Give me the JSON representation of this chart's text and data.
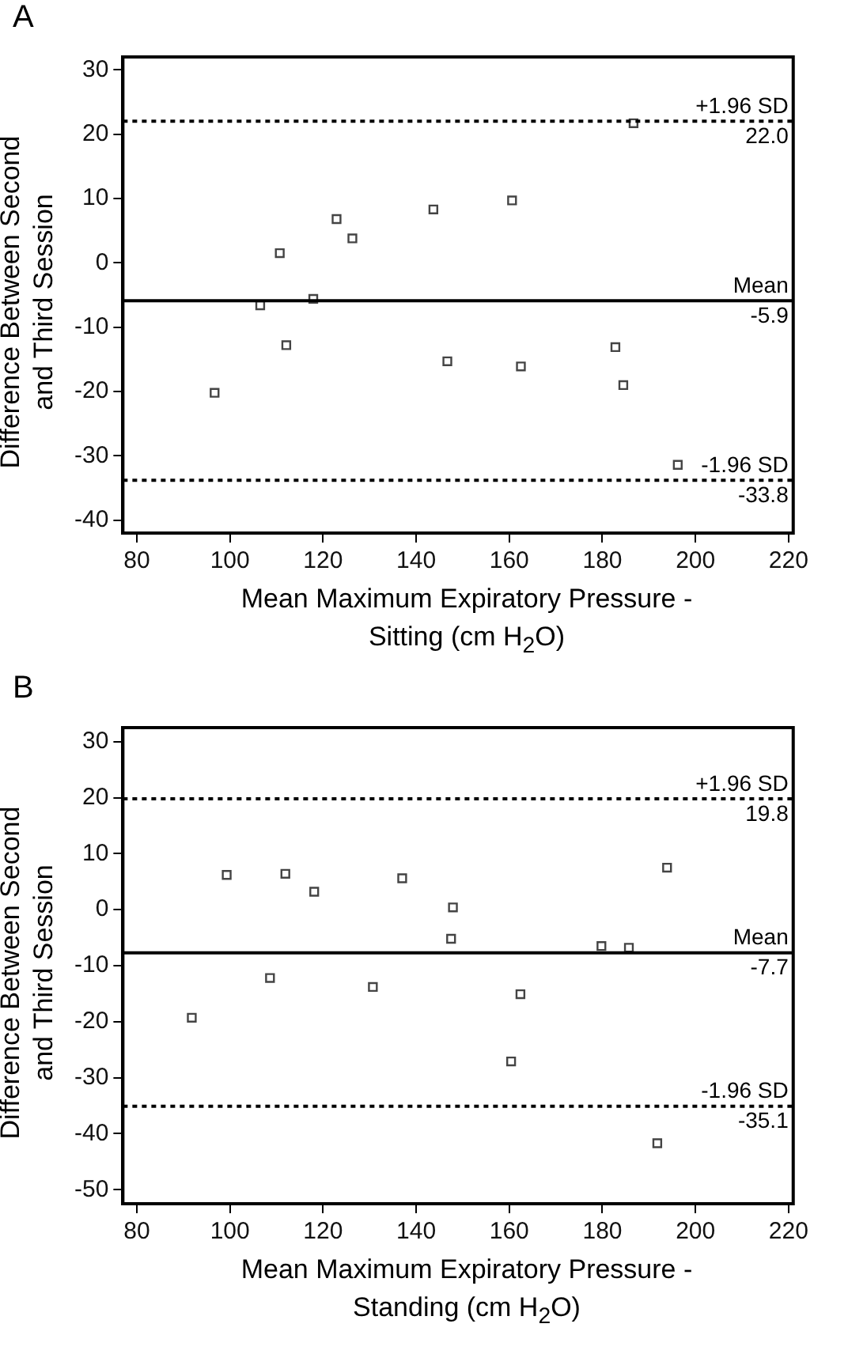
{
  "chart_data": [
    {
      "type": "scatter",
      "title": "A",
      "xlabel": "Mean Maximum Expiratory Pressure - Sitting (cm H$_{2}$O)",
      "ylabel": "Difference Between Second and Third Session",
      "x": [
        96.7,
        106.5,
        110.7,
        112.1,
        117.9,
        122.9,
        126.3,
        143.7,
        146.7,
        160.6,
        162.5,
        182.8,
        184.5,
        186.7,
        196.2
      ],
      "values": [
        -20.2,
        -6.6,
        1.5,
        -12.8,
        -5.6,
        6.8,
        3.8,
        8.3,
        -15.3,
        9.7,
        -16.1,
        -13.1,
        -19.0,
        21.7,
        -31.4
      ],
      "color": "#444444",
      "marker": "square",
      "grid": false,
      "xlim": [
        77,
        221
      ],
      "xticks": [
        80,
        100,
        120,
        140,
        160,
        180,
        200,
        220
      ],
      "ylim": [
        -42,
        32
      ],
      "yticks": [
        -40,
        -30,
        -20,
        -10,
        0,
        10,
        20,
        30
      ],
      "ref_lines": [
        {
          "axis": "y",
          "value": 22.0,
          "label": "+1.96 SD\n22.0",
          "line_style": "dotted",
          "color": "#000000"
        },
        {
          "axis": "y",
          "value": -5.9,
          "label": "Mean\n-5.9",
          "line_style": "solid",
          "color": "#000000"
        },
        {
          "axis": "y",
          "value": -33.8,
          "label": "-1.96 SD\n-33.8",
          "line_style": "dotted",
          "color": "#000000"
        }
      ]
    },
    {
      "type": "scatter",
      "title": "B",
      "xlabel": "Mean Maximum Expiratory Pressure - Standing (cm H$_{2}$O)",
      "ylabel": "Difference Between Second and Third Session",
      "x": [
        91.8,
        99.3,
        108.6,
        111.9,
        118.1,
        130.7,
        137.0,
        147.5,
        147.9,
        160.4,
        162.4,
        179.8,
        185.7,
        191.8,
        193.9
      ],
      "values": [
        -19.3,
        6.2,
        -12.2,
        6.4,
        3.2,
        -13.8,
        5.6,
        -5.2,
        0.4,
        -27.1,
        -15.1,
        -6.5,
        -6.8,
        -41.7,
        7.5
      ],
      "color": "#444444",
      "marker": "square",
      "grid": false,
      "xlim": [
        77,
        221
      ],
      "xticks": [
        80,
        100,
        120,
        140,
        160,
        180,
        200,
        220
      ],
      "ylim": [
        -52.5,
        32.5
      ],
      "yticks": [
        -50,
        -40,
        -30,
        -20,
        -10,
        0,
        10,
        20,
        30
      ],
      "ref_lines": [
        {
          "axis": "y",
          "value": 19.8,
          "label": "+1.96 SD\n19.8",
          "line_style": "dotted",
          "color": "#000000"
        },
        {
          "axis": "y",
          "value": -7.7,
          "label": "Mean\n-7.7",
          "line_style": "solid",
          "color": "#000000"
        },
        {
          "axis": "y",
          "value": -35.1,
          "label": "-1.96 SD\n-35.1",
          "line_style": "dotted",
          "color": "#000000"
        }
      ]
    }
  ]
}
